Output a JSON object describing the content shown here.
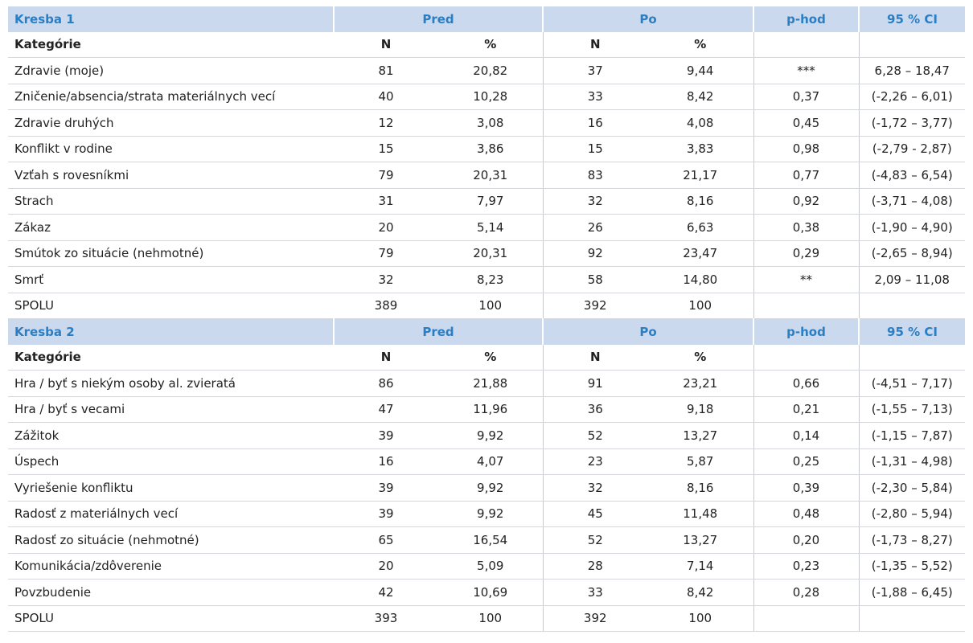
{
  "sections": [
    {
      "header": {
        "title": "Kresba 1",
        "pred": "Pred",
        "po": "Po",
        "phod": "p-hod",
        "ci": "95 % CI"
      },
      "subheader": {
        "category": "Kategórie",
        "n_pred": "N",
        "pct_pred": "%",
        "n_po": "N",
        "pct_po": "%"
      },
      "rows": [
        [
          "Zdravie (moje)",
          "81",
          "20,82",
          "37",
          "9,44",
          "***",
          "6,28 – 18,47"
        ],
        [
          "Zničenie/absencia/strata materiálnych vecí",
          "40",
          "10,28",
          "33",
          "8,42",
          "0,37",
          "(-2,26 – 6,01)"
        ],
        [
          "Zdravie druhých",
          "12",
          "3,08",
          "16",
          "4,08",
          "0,45",
          "(-1,72 – 3,77)"
        ],
        [
          "Konflikt v rodine",
          "15",
          "3,86",
          "15",
          "3,83",
          "0,98",
          "(-2,79 - 2,87)"
        ],
        [
          "Vzťah s rovesníkmi",
          "79",
          "20,31",
          "83",
          "21,17",
          "0,77",
          "(-4,83 – 6,54)"
        ],
        [
          "Strach",
          "31",
          "7,97",
          "32",
          "8,16",
          "0,92",
          "(-3,71 – 4,08)"
        ],
        [
          "Zákaz",
          "20",
          "5,14",
          "26",
          "6,63",
          "0,38",
          "(-1,90 – 4,90)"
        ],
        [
          "Smútok zo situácie (nehmotné)",
          "79",
          "20,31",
          "92",
          "23,47",
          "0,29",
          "(-2,65 – 8,94)"
        ],
        [
          "Smrť",
          "32",
          "8,23",
          "58",
          "14,80",
          "**",
          "2,09 – 11,08"
        ],
        [
          "SPOLU",
          "389",
          "100",
          "392",
          "100"
        ]
      ]
    },
    {
      "header": {
        "title": "Kresba 2",
        "pred": "Pred",
        "po": "Po",
        "phod": "p-hod",
        "ci": "95 % CI"
      },
      "subheader": {
        "category": "Kategórie",
        "n_pred": "N",
        "pct_pred": "%",
        "n_po": "N",
        "pct_po": "%"
      },
      "rows": [
        [
          "Hra / byť s niekým osoby al. zvieratá",
          "86",
          "21,88",
          "91",
          "23,21",
          "0,66",
          "(-4,51 – 7,17)"
        ],
        [
          "Hra / byť s vecami",
          "47",
          "11,96",
          "36",
          "9,18",
          "0,21",
          "(-1,55 – 7,13)"
        ],
        [
          "Zážitok",
          "39",
          "9,92",
          "52",
          "13,27",
          "0,14",
          "(-1,15 – 7,87)"
        ],
        [
          "Úspech",
          "16",
          "4,07",
          "23",
          "5,87",
          "0,25",
          "(-1,31 – 4,98)"
        ],
        [
          "Vyriešenie konfliktu",
          "39",
          "9,92",
          "32",
          "8,16",
          "0,39",
          "(-2,30 – 5,84)"
        ],
        [
          "Radosť z materiálnych vecí",
          "39",
          "9,92",
          "45",
          "11,48",
          "0,48",
          "(-2,80 – 5,94)"
        ],
        [
          "Radosť zo situácie (nehmotné)",
          "65",
          "16,54",
          "52",
          "13,27",
          "0,20",
          "(-1,73 – 8,27)"
        ],
        [
          "Komunikácia/zdôverenie",
          "20",
          "5,09",
          "28",
          "7,14",
          "0,23",
          "(-1,35 – 5,52)"
        ],
        [
          "Povzbudenie",
          "42",
          "10,69",
          "33",
          "8,42",
          "0,28",
          "(-1,88 – 6,45)"
        ],
        [
          "SPOLU",
          "393",
          "100",
          "392",
          "100"
        ]
      ]
    }
  ]
}
